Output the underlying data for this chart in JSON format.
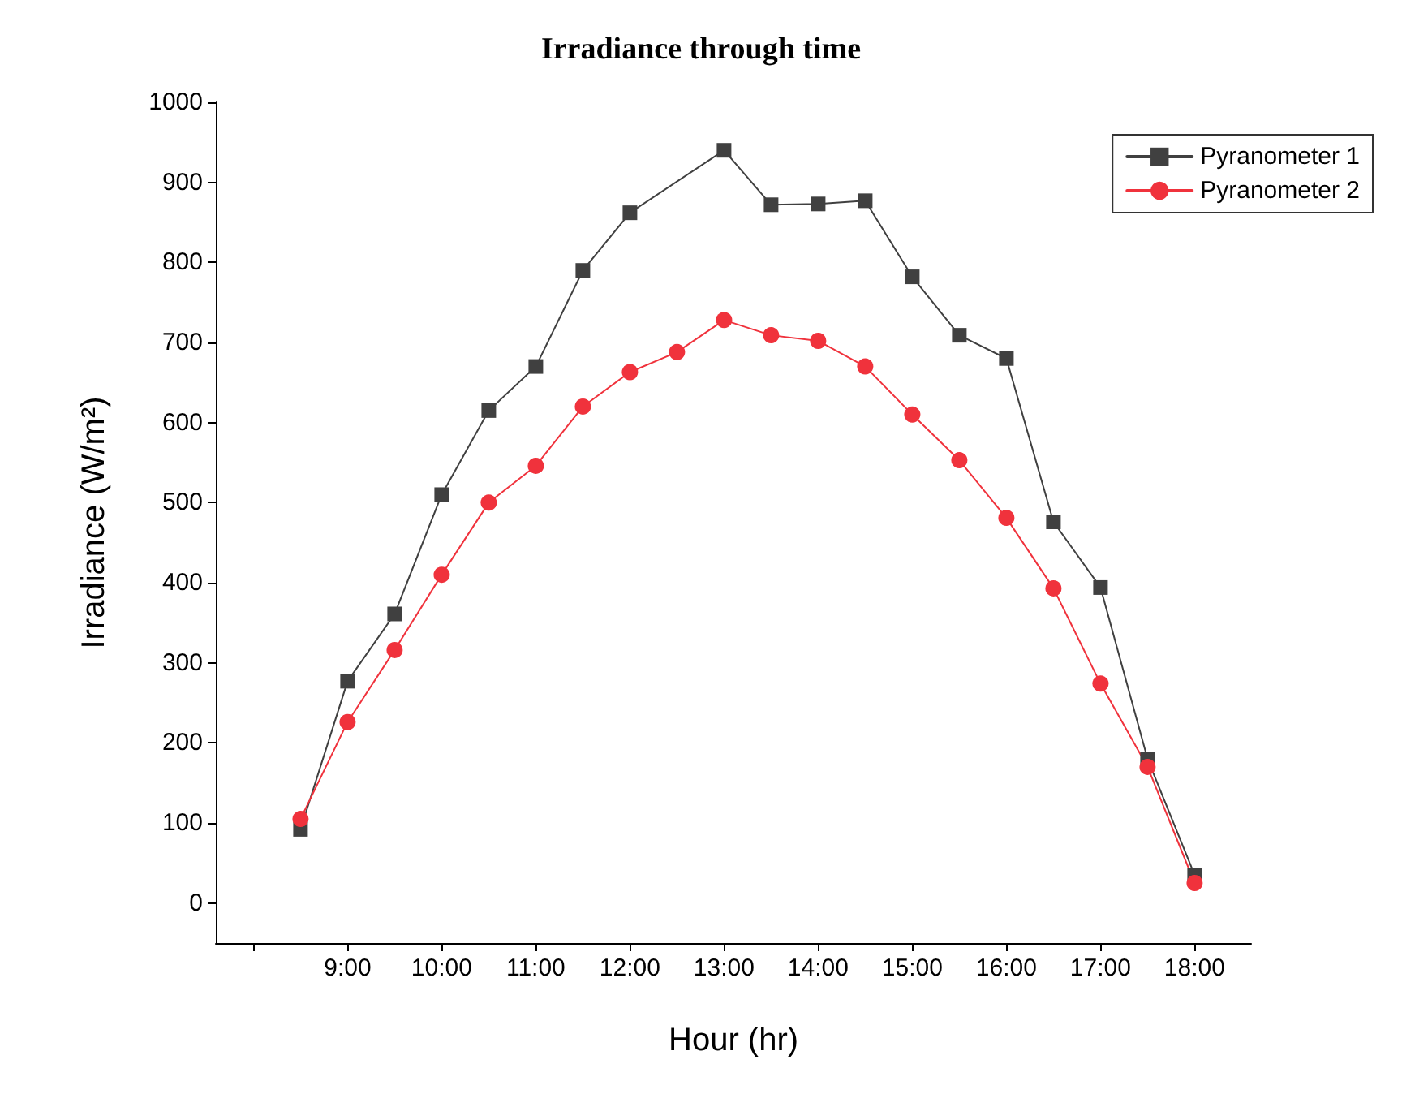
{
  "chart_data": {
    "type": "line",
    "title": "Irradiance through time",
    "xlabel": "Hour (hr)",
    "ylabel": "Irradiance (W/m²)",
    "xlim": [
      7.6,
      18.6
    ],
    "xticks": [
      {
        "value": 8,
        "label": null
      },
      {
        "value": 9,
        "label": "9:00"
      },
      {
        "value": 10,
        "label": "10:00"
      },
      {
        "value": 11,
        "label": "11:00"
      },
      {
        "value": 12,
        "label": "12:00"
      },
      {
        "value": 13,
        "label": "13:00"
      },
      {
        "value": 14,
        "label": "14:00"
      },
      {
        "value": 15,
        "label": "15:00"
      },
      {
        "value": 16,
        "label": "16:00"
      },
      {
        "value": 17,
        "label": "17:00"
      },
      {
        "value": 18,
        "label": "18:00"
      }
    ],
    "ylim": [
      -50,
      1000
    ],
    "yticks": [
      0,
      100,
      200,
      300,
      400,
      500,
      600,
      700,
      800,
      900,
      1000
    ],
    "grid": false,
    "legend": "top right",
    "series": [
      {
        "name": "Pyranometer 1",
        "color": "#404040",
        "marker": "square",
        "x": [
          8.5,
          9,
          9.5,
          10,
          10.5,
          11,
          11.5,
          12,
          13,
          13.5,
          14,
          14.5,
          15,
          15.5,
          16,
          16.5,
          17,
          17.5,
          18
        ],
        "values": [
          92,
          277,
          361,
          510,
          615,
          670,
          790,
          862,
          940,
          872,
          873,
          877,
          782,
          709,
          680,
          476,
          394,
          180,
          35
        ]
      },
      {
        "name": "Pyranometer 2",
        "color": "#f0323c",
        "marker": "circle",
        "x": [
          8.5,
          9,
          9.5,
          10,
          10.5,
          11,
          11.5,
          12,
          12.5,
          13,
          13.5,
          14,
          14.5,
          15,
          15.5,
          16,
          16.5,
          17,
          17.5,
          18
        ],
        "values": [
          105,
          226,
          316,
          410,
          500,
          546,
          620,
          663,
          688,
          728,
          709,
          702,
          670,
          610,
          553,
          481,
          393,
          274,
          170,
          25
        ]
      }
    ]
  }
}
